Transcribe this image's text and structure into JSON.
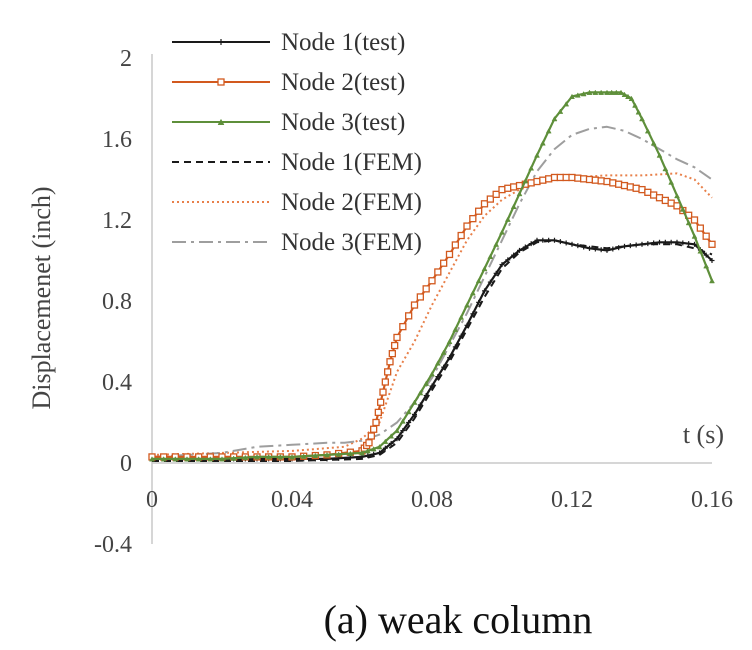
{
  "chart_data": {
    "type": "line",
    "title": "",
    "caption": "(a) weak column",
    "xlabel": "t (s)",
    "ylabel": "Displacemenet (inch)",
    "xlim": [
      0,
      0.16
    ],
    "ylim": [
      -0.4,
      2
    ],
    "x_ticks": [
      "0",
      "0.04",
      "0.08",
      "0.12",
      "0.16"
    ],
    "y_ticks": [
      "-0.4",
      "0",
      "0.4",
      "0.8",
      "1.2",
      "1.6",
      "2"
    ],
    "grid": false,
    "legend_position": "top-left",
    "series": [
      {
        "name": "Node 1(test)",
        "color": "#1a1a1a",
        "style": "solid",
        "marker": "plus",
        "x": [
          0,
          0.01,
          0.02,
          0.03,
          0.04,
          0.05,
          0.06,
          0.065,
          0.07,
          0.075,
          0.08,
          0.085,
          0.09,
          0.095,
          0.1,
          0.105,
          0.11,
          0.115,
          0.12,
          0.125,
          0.13,
          0.135,
          0.14,
          0.145,
          0.15,
          0.155,
          0.16
        ],
        "y": [
          0.02,
          0.02,
          0.02,
          0.02,
          0.02,
          0.02,
          0.03,
          0.05,
          0.12,
          0.24,
          0.38,
          0.52,
          0.68,
          0.85,
          0.98,
          1.05,
          1.1,
          1.1,
          1.08,
          1.06,
          1.05,
          1.07,
          1.08,
          1.09,
          1.09,
          1.08,
          1.0
        ]
      },
      {
        "name": "Node 2(test)",
        "color": "#d2591e",
        "style": "solid",
        "marker": "square",
        "x": [
          0,
          0.01,
          0.02,
          0.03,
          0.04,
          0.05,
          0.06,
          0.062,
          0.064,
          0.066,
          0.068,
          0.07,
          0.075,
          0.08,
          0.085,
          0.09,
          0.095,
          0.1,
          0.105,
          0.11,
          0.115,
          0.12,
          0.125,
          0.13,
          0.135,
          0.14,
          0.145,
          0.15,
          0.155,
          0.16
        ],
        "y": [
          0.03,
          0.03,
          0.03,
          0.03,
          0.03,
          0.04,
          0.06,
          0.1,
          0.2,
          0.35,
          0.5,
          0.62,
          0.78,
          0.9,
          1.03,
          1.17,
          1.28,
          1.35,
          1.37,
          1.39,
          1.41,
          1.41,
          1.4,
          1.39,
          1.37,
          1.35,
          1.31,
          1.27,
          1.2,
          1.08
        ]
      },
      {
        "name": "Node 3(test)",
        "color": "#5e8f3a",
        "style": "solid",
        "marker": "triangle",
        "x": [
          0,
          0.01,
          0.02,
          0.03,
          0.04,
          0.05,
          0.06,
          0.065,
          0.07,
          0.075,
          0.08,
          0.085,
          0.09,
          0.095,
          0.1,
          0.105,
          0.11,
          0.115,
          0.12,
          0.125,
          0.13,
          0.134,
          0.137,
          0.14,
          0.145,
          0.15,
          0.155,
          0.16
        ],
        "y": [
          0.02,
          0.02,
          0.02,
          0.03,
          0.03,
          0.04,
          0.05,
          0.08,
          0.16,
          0.3,
          0.44,
          0.6,
          0.78,
          0.96,
          1.14,
          1.33,
          1.52,
          1.7,
          1.81,
          1.83,
          1.83,
          1.83,
          1.8,
          1.7,
          1.52,
          1.32,
          1.12,
          0.9
        ]
      },
      {
        "name": "Node 1(FEM)",
        "color": "#1a1a1a",
        "style": "dashed",
        "marker": "none",
        "x": [
          0,
          0.02,
          0.04,
          0.06,
          0.065,
          0.07,
          0.075,
          0.08,
          0.085,
          0.09,
          0.095,
          0.1,
          0.105,
          0.11,
          0.115,
          0.12,
          0.13,
          0.14,
          0.15,
          0.155,
          0.16
        ],
        "y": [
          0.01,
          0.01,
          0.01,
          0.02,
          0.04,
          0.1,
          0.22,
          0.36,
          0.5,
          0.66,
          0.82,
          0.96,
          1.04,
          1.09,
          1.1,
          1.08,
          1.06,
          1.08,
          1.08,
          1.06,
          1.03
        ]
      },
      {
        "name": "Node 2(FEM)",
        "color": "#e8804a",
        "style": "dotted",
        "marker": "none",
        "x": [
          0,
          0.02,
          0.04,
          0.055,
          0.06,
          0.065,
          0.07,
          0.075,
          0.08,
          0.085,
          0.09,
          0.095,
          0.1,
          0.105,
          0.11,
          0.115,
          0.12,
          0.13,
          0.14,
          0.15,
          0.155,
          0.16
        ],
        "y": [
          0.04,
          0.05,
          0.06,
          0.08,
          0.12,
          0.2,
          0.45,
          0.6,
          0.78,
          0.94,
          1.1,
          1.22,
          1.3,
          1.35,
          1.38,
          1.4,
          1.41,
          1.42,
          1.42,
          1.43,
          1.4,
          1.31
        ]
      },
      {
        "name": "Node 3(FEM)",
        "color": "#9e9e9e",
        "style": "dashdot",
        "marker": "none",
        "x": [
          0,
          0.02,
          0.03,
          0.04,
          0.05,
          0.055,
          0.06,
          0.065,
          0.07,
          0.075,
          0.08,
          0.085,
          0.09,
          0.095,
          0.1,
          0.105,
          0.11,
          0.115,
          0.12,
          0.125,
          0.13,
          0.135,
          0.14,
          0.145,
          0.15,
          0.155,
          0.16
        ],
        "y": [
          0.03,
          0.05,
          0.08,
          0.09,
          0.1,
          0.1,
          0.11,
          0.14,
          0.2,
          0.3,
          0.42,
          0.58,
          0.74,
          0.92,
          1.1,
          1.28,
          1.44,
          1.55,
          1.62,
          1.65,
          1.66,
          1.64,
          1.6,
          1.55,
          1.5,
          1.46,
          1.4
        ]
      }
    ]
  }
}
